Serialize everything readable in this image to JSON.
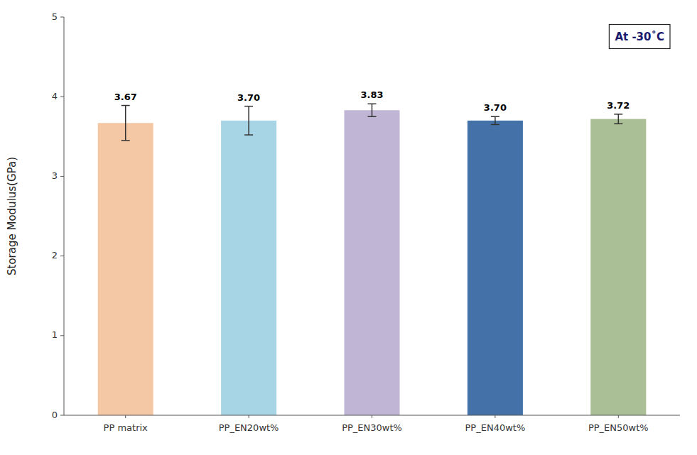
{
  "chart_data": {
    "type": "bar",
    "categories": [
      "PP matrix",
      "PP_EN20wt%",
      "PP_EN30wt%",
      "PP_EN40wt%",
      "PP_EN50wt%"
    ],
    "values": [
      3.67,
      3.7,
      3.83,
      3.7,
      3.72
    ],
    "value_labels": [
      "3.67",
      "3.70",
      "3.83",
      "3.70",
      "3.72"
    ],
    "errors": [
      0.22,
      0.18,
      0.08,
      0.05,
      0.06
    ],
    "colors": [
      "#F5C8A5",
      "#A8D5E5",
      "#C0B5D5",
      "#4472A8",
      "#AABF95"
    ],
    "ylabel": "Storage Modulus(GPa)",
    "annotation": "At -30˚C",
    "ylim": [
      0,
      5
    ],
    "yticks": [
      0,
      1,
      2,
      3,
      4,
      5
    ],
    "data_labels": true,
    "grid": false
  }
}
